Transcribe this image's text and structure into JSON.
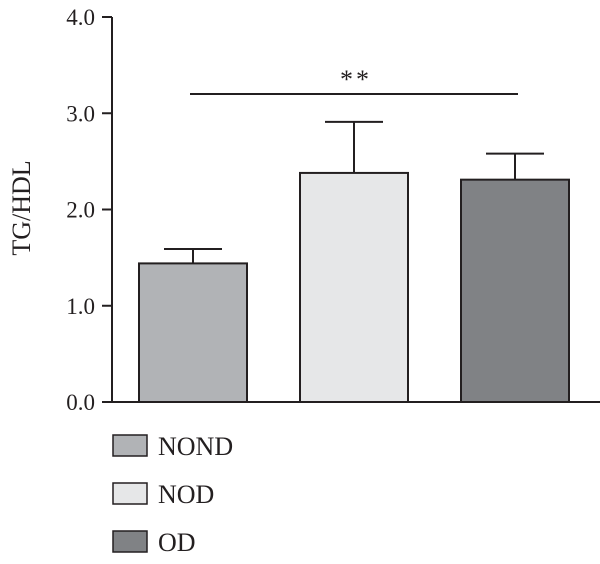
{
  "chart_data": {
    "type": "bar",
    "ylabel": "TG/HDL",
    "ylim": [
      0,
      4
    ],
    "yticks": [
      "0.0",
      "1.0",
      "2.0",
      "3.0",
      "4.0"
    ],
    "grid": false,
    "legend_position": "bottom-left",
    "series": [
      {
        "name": "NOND",
        "value": 1.44,
        "error": 0.15,
        "color": "#b1b3b6"
      },
      {
        "name": "NOD",
        "value": 2.38,
        "error": 0.53,
        "color": "#e6e7e8"
      },
      {
        "name": "OD",
        "value": 2.31,
        "error": 0.27,
        "color": "#808285"
      }
    ],
    "annotation": {
      "text": "**",
      "from": "NOND",
      "to": "OD",
      "y": 3.2
    }
  }
}
